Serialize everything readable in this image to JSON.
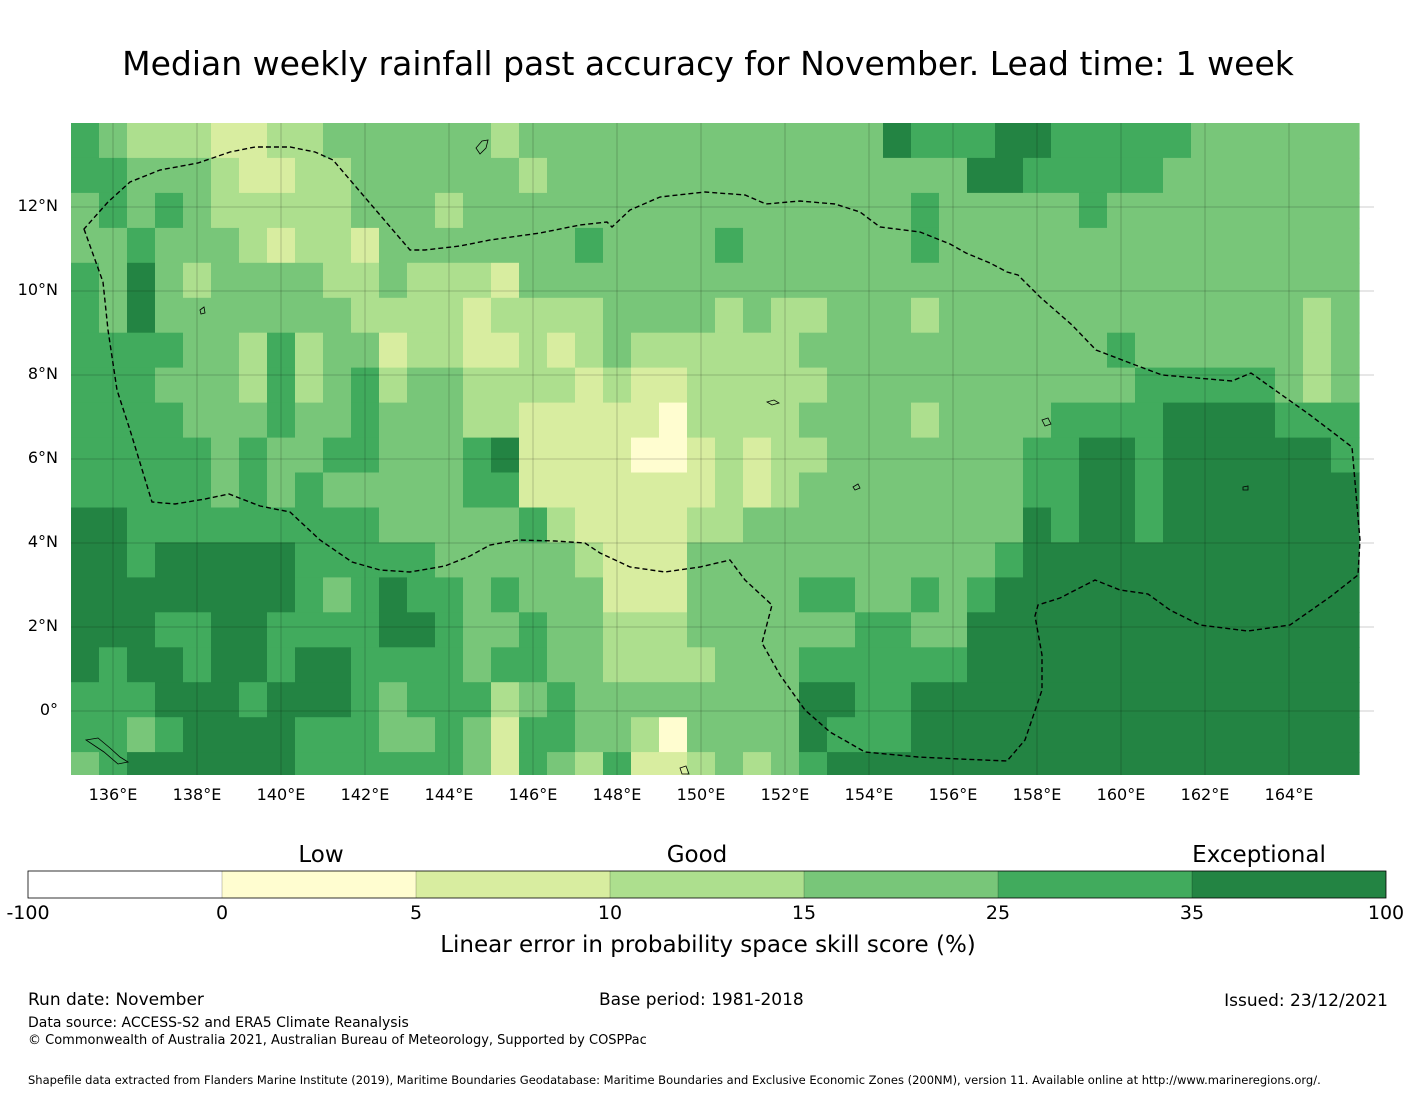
{
  "title": "Median weekly rainfall past accuracy for November. Lead time: 1 week",
  "map": {
    "lat_labels": [
      "12°N",
      "10°N",
      "8°N",
      "6°N",
      "4°N",
      "2°N",
      "0°"
    ],
    "lon_labels": [
      "136°E",
      "138°E",
      "140°E",
      "142°E",
      "144°E",
      "146°E",
      "148°E",
      "150°E",
      "152°E",
      "154°E",
      "156°E",
      "158°E",
      "160°E",
      "162°E",
      "164°E"
    ],
    "palette": [
      "#ffffff",
      "#fffdd0",
      "#d8eda0",
      "#addf8e",
      "#78c679",
      "#41ab5d",
      "#238443"
    ],
    "grid_rows": [
      "5544555555566666554",
      "4554445555566665555",
      "3445665555555666546",
      "3454445455556656656",
      "3444344445556655666",
      "2334444444456666666",
      "2233443345556666566",
      "3232445554456655666",
      "3333443344555556655",
      "4333344445455456655",
      "4442334555455555555",
      "4444432344445665445",
      "4444333444445565545",
      "4434333444444555555",
      "4444322335544444544",
      "3444232336544545322",
      "4344433322254455455",
      "4444432322234444554",
      "4445433222223444443",
      "4444444322222233445",
      "4444443221222233432",
      "4444443211222233412",
      "4444443332234443443",
      "4445433333334444444",
      "4444443332244444443",
      "4444433333344444444",
      "4444434343444545665",
      "4444444444444545656",
      "4444444444444455556",
      "6444444444444455556",
      "5455434434444545666",
      "5444444444444445666",
      "5644444444444566666",
      "6644444444445666666",
      "6544444445566666666",
      "5544444455556666666",
      "5554444456666666666",
      "5544445456666666666",
      "5544444555556666666",
      "5444444566666666666",
      "4444444566666666666",
      "4444444566666666666",
      "4444444566666666666",
      "4444444456666666666",
      "4444433356666666666",
      "4444444455666666666"
    ]
  },
  "colorbar": {
    "category_labels": [
      "Low",
      "Good",
      "Exceptional"
    ],
    "ticks": [
      "-100",
      "0",
      "5",
      "10",
      "15",
      "25",
      "35",
      "100"
    ],
    "colors": [
      "#ffffff",
      "#fffdd0",
      "#d8eda0",
      "#addf8e",
      "#78c679",
      "#41ab5d",
      "#238443"
    ],
    "title": "Linear error in probability space skill score (%)"
  },
  "footer": {
    "run_date": "Run date: November",
    "base_period": "Base period: 1981-2018",
    "issued": "Issued: 23/12/2021",
    "data_source": "Data source: ACCESS-S2 and ERA5 Climate Reanalysis",
    "copyright": "© Commonwealth of Australia 2021, Australian Bureau of Meteorology, Supported by COSPPac",
    "shapefile_note": "Shapefile data extracted from Flanders Marine Institute (2019), Maritime Boundaries Geodatabase: Maritime Boundaries and Exclusive Economic Zones (200NM), version 11. Available online at http://www.marineregions.org/."
  }
}
